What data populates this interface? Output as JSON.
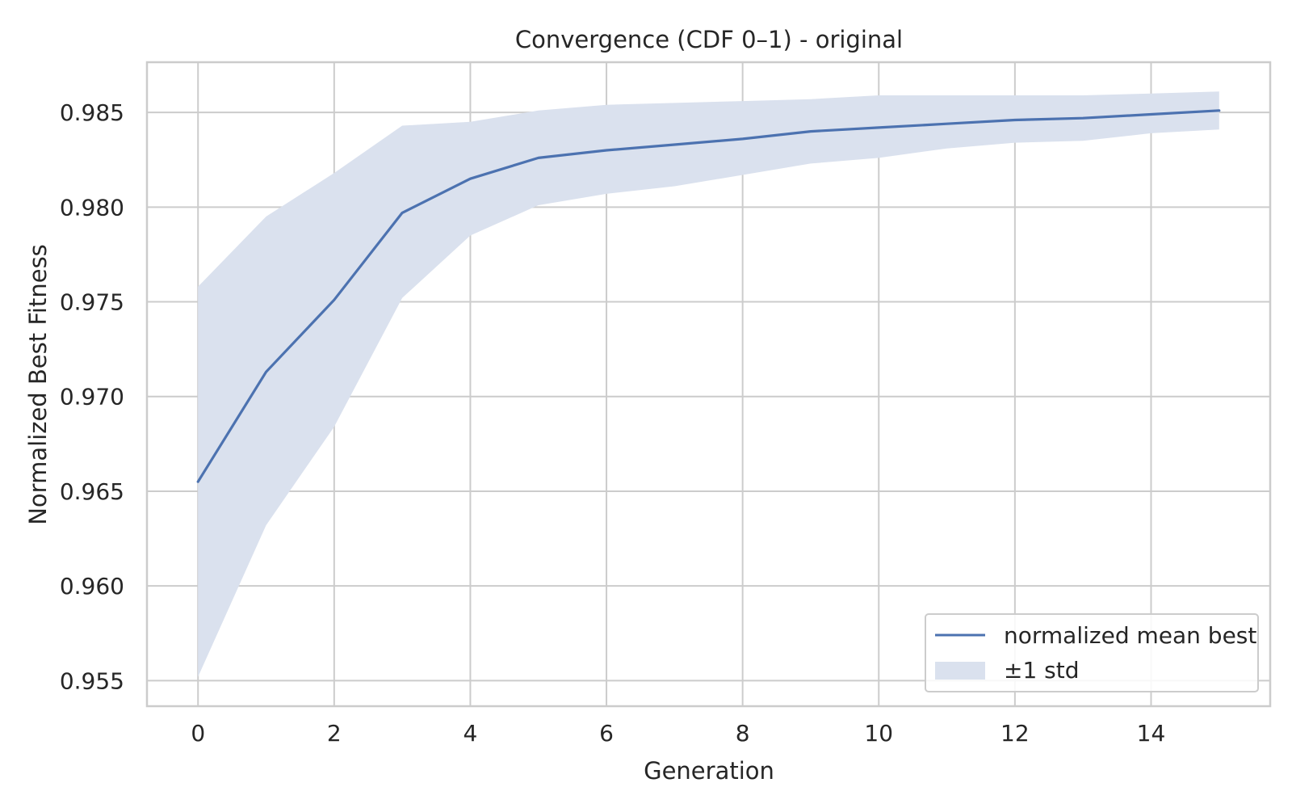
{
  "chart_data": {
    "type": "line",
    "title": "Convergence (CDF 0–1) - original",
    "xlabel": "Generation",
    "ylabel": "Normalized Best Fitness",
    "xlim": [
      -0.75,
      15.75
    ],
    "ylim": [
      0.95365,
      0.98765
    ],
    "xticks": [
      0,
      2,
      4,
      6,
      8,
      10,
      12,
      14
    ],
    "xtick_labels": [
      "0",
      "2",
      "4",
      "6",
      "8",
      "10",
      "12",
      "14"
    ],
    "yticks": [
      0.955,
      0.96,
      0.965,
      0.97,
      0.975,
      0.98,
      0.985
    ],
    "ytick_labels": [
      "0.955",
      "0.960",
      "0.965",
      "0.970",
      "0.975",
      "0.980",
      "0.985"
    ],
    "grid": true,
    "legend_position": "lower right",
    "x": [
      0,
      1,
      2,
      3,
      4,
      5,
      6,
      7,
      8,
      9,
      10,
      11,
      12,
      13,
      14,
      15
    ],
    "series": [
      {
        "name": "normalized mean best",
        "kind": "line",
        "color": "#4c72b0",
        "values": [
          0.9655,
          0.9713,
          0.9751,
          0.9797,
          0.9815,
          0.9826,
          0.983,
          0.9833,
          0.9836,
          0.984,
          0.9842,
          0.9844,
          0.9846,
          0.9847,
          0.9849,
          0.9851
        ]
      },
      {
        "name": "±1 std",
        "kind": "band",
        "color": "#dae1ee",
        "upper": [
          0.9758,
          0.9795,
          0.9818,
          0.9843,
          0.9845,
          0.9851,
          0.9854,
          0.9855,
          0.9856,
          0.9857,
          0.9859,
          0.9859,
          0.9859,
          0.9859,
          0.986,
          0.9861
        ],
        "lower": [
          0.9552,
          0.9632,
          0.9684,
          0.9752,
          0.9785,
          0.9801,
          0.9807,
          0.9811,
          0.9817,
          0.9823,
          0.9826,
          0.9831,
          0.9834,
          0.9835,
          0.9839,
          0.9841
        ]
      }
    ]
  }
}
